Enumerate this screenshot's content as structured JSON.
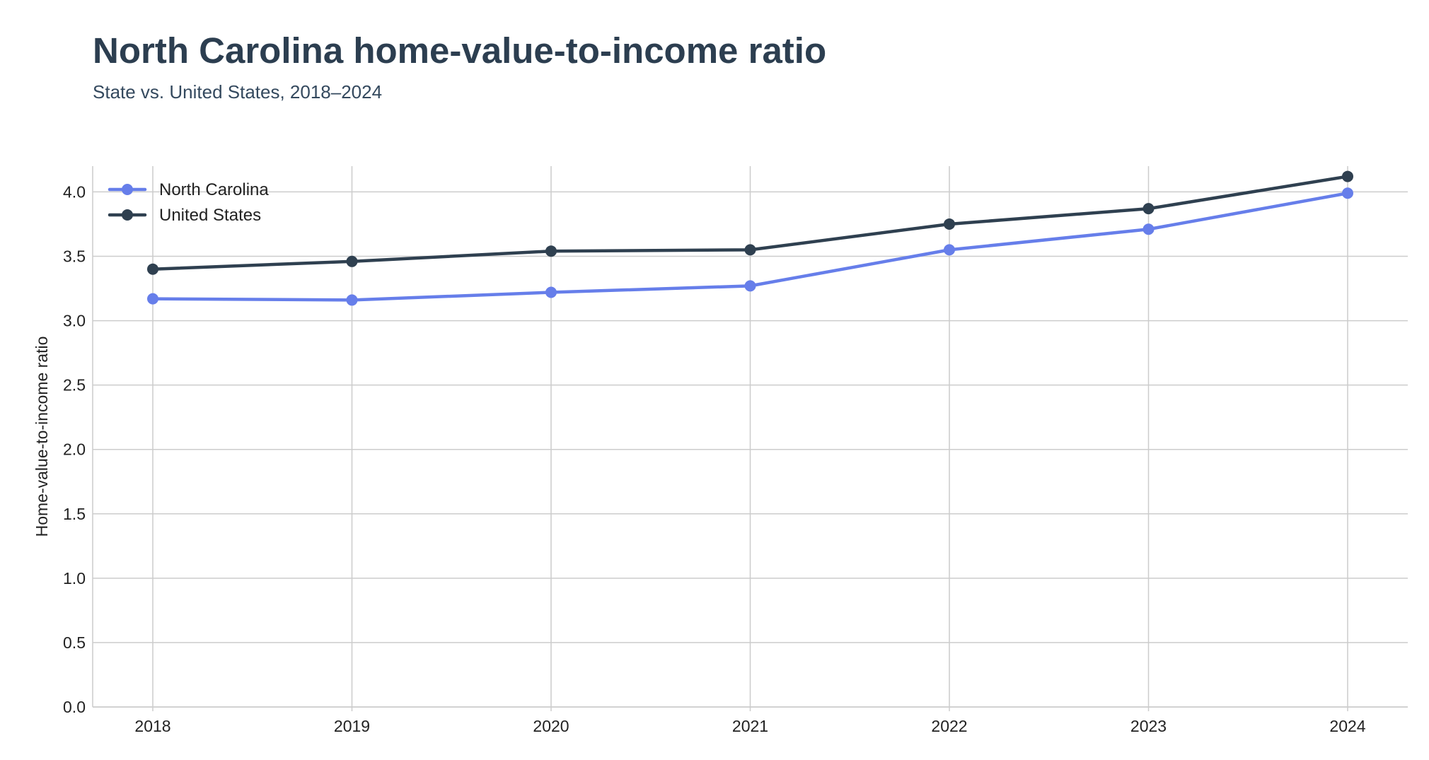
{
  "title": "North Carolina home-value-to-income ratio",
  "subtitle": "State vs. United States, 2018–2024",
  "chart_data": {
    "type": "line",
    "title": "North Carolina home-value-to-income ratio",
    "subtitle": "State vs. United States, 2018–2024",
    "xlabel": "",
    "ylabel": "Home-value-to-income ratio",
    "categories": [
      "2018",
      "2019",
      "2020",
      "2021",
      "2022",
      "2023",
      "2024"
    ],
    "ylim": [
      0,
      4.2
    ],
    "yticks": [
      "0.0",
      "0.5",
      "1.0",
      "1.5",
      "2.0",
      "2.5",
      "3.0",
      "3.5",
      "4.0"
    ],
    "grid": true,
    "legend_position": "top-left",
    "series": [
      {
        "name": "North Carolina",
        "color": "#667eea",
        "values": [
          3.17,
          3.16,
          3.22,
          3.27,
          3.55,
          3.71,
          3.99
        ]
      },
      {
        "name": "United States",
        "color": "#2f4050",
        "values": [
          3.4,
          3.46,
          3.54,
          3.55,
          3.75,
          3.87,
          4.12
        ]
      }
    ]
  }
}
